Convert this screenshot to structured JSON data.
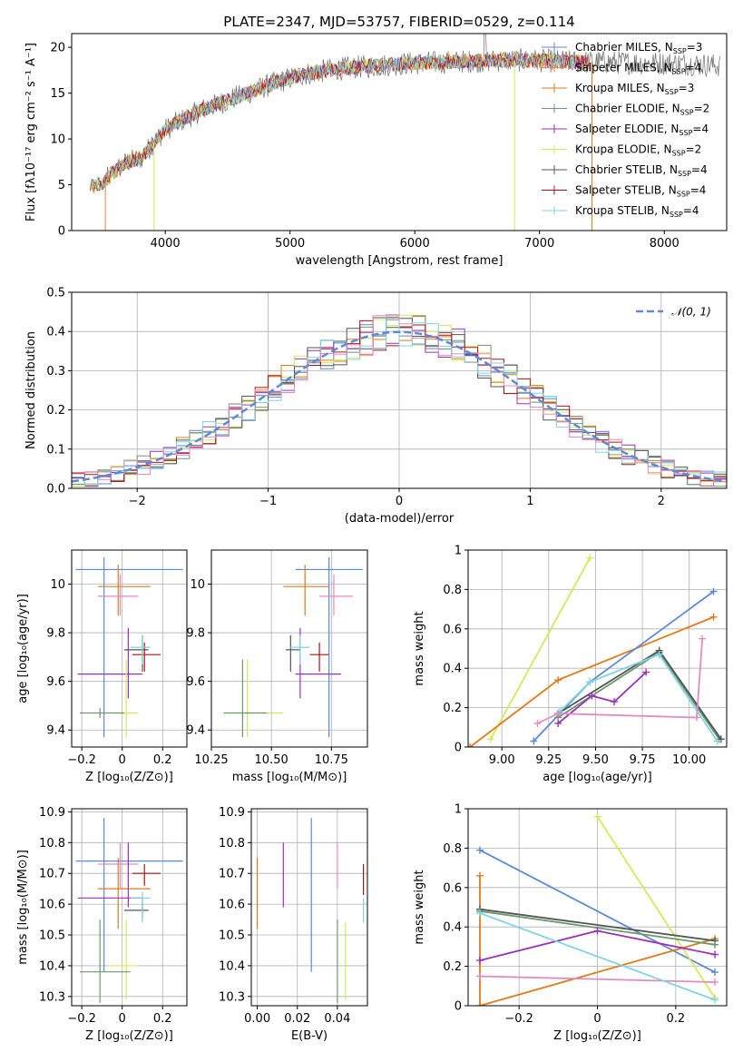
{
  "colors": {
    "Chabrier MILES": "#5b8ad8",
    "Salpeter MILES": "#ff7f3f",
    "Kroupa MILES": "#e07b1a",
    "Chabrier ELODIE": "#6a9a6a",
    "Salpeter ELODIE": "#9b30b8",
    "Kroupa ELODIE": "#d6e85a",
    "Chabrier STELIB": "#555555",
    "Salpeter STELIB": "#b01010",
    "Kroupa STELIB": "#7fd3e8",
    "normal": "#5b8ad8",
    "pink": "#e58ac0"
  },
  "chart_data": [
    {
      "id": "spectrum",
      "type": "line",
      "title": "PLATE=2347, MJD=53757, FIBERID=0529, z=0.114",
      "xlabel": "wavelength [Angstrom, rest frame]",
      "ylabel": "Flux [fλ10⁻¹⁷ erg cm⁻² s⁻¹ A⁻¹]",
      "xlim": [
        3250,
        8500
      ],
      "ylim": [
        0,
        21.5
      ],
      "xticks": [
        4000,
        5000,
        6000,
        7000,
        8000
      ],
      "yticks": [
        0,
        5,
        10,
        15,
        20
      ],
      "grid": false,
      "legend_position": "right",
      "legend": [
        {
          "label": "Chabrier MILES, N",
          "sub": "SSP",
          "value": "=3"
        },
        {
          "label": "Salpeter MILES, N",
          "sub": "SSP",
          "value": "=4"
        },
        {
          "label": "Kroupa MILES, N",
          "sub": "SSP",
          "value": "=3"
        },
        {
          "label": "Chabrier ELODIE, N",
          "sub": "SSP",
          "value": "=2"
        },
        {
          "label": "Salpeter ELODIE, N",
          "sub": "SSP",
          "value": "=4"
        },
        {
          "label": "Kroupa ELODIE, N",
          "sub": "SSP",
          "value": "=2"
        },
        {
          "label": "Chabrier STELIB, N",
          "sub": "SSP",
          "value": "=4"
        },
        {
          "label": "Salpeter STELIB, N",
          "sub": "SSP",
          "value": "=4"
        },
        {
          "label": "Kroupa STELIB, N",
          "sub": "SSP",
          "value": "=4"
        }
      ],
      "legend_keys": [
        "Chabrier MILES",
        "Salpeter MILES",
        "Kroupa MILES",
        "Chabrier ELODIE",
        "Salpeter ELODIE",
        "Kroupa ELODIE",
        "Chabrier STELIB",
        "Salpeter STELIB",
        "Kroupa STELIB"
      ],
      "continuum_x": [
        3400,
        3500,
        3600,
        3700,
        3800,
        3900,
        4000,
        4100,
        4200,
        4300,
        4500,
        4700,
        4900,
        5100,
        5300,
        5500,
        5700,
        5900,
        6100,
        6300,
        6500,
        6700,
        6900,
        7100,
        7300,
        7500,
        7800,
        8200,
        8450
      ],
      "continuum_y": [
        4.8,
        5.2,
        6.5,
        7.5,
        7.8,
        9.5,
        11.0,
        11.8,
        12.5,
        13.2,
        14.2,
        15.2,
        16.2,
        17.0,
        17.5,
        17.8,
        18.0,
        18.2,
        18.3,
        18.4,
        18.5,
        18.6,
        18.6,
        18.5,
        18.4,
        18.4,
        18.3,
        18.2,
        18.0
      ],
      "drops": [
        {
          "x": 3520,
          "color": "Salpeter MILES"
        },
        {
          "x": 3910,
          "color": "Kroupa ELODIE"
        },
        {
          "x": 6800,
          "color": "Kroupa ELODIE"
        },
        {
          "x": 7420,
          "color": "Kroupa MILES"
        }
      ]
    },
    {
      "id": "residuals",
      "type": "line",
      "xlabel": "(data-model)/error",
      "ylabel": "Normed distribution",
      "xlim": [
        -2.5,
        2.5
      ],
      "ylim": [
        0,
        0.5
      ],
      "xticks": [
        -2,
        -1,
        0,
        1,
        2
      ],
      "yticks": [
        0.0,
        0.1,
        0.2,
        0.3,
        0.4,
        0.5
      ],
      "grid": true,
      "legend_position": "top-right",
      "legend": [
        "𝒩(0, 1)"
      ],
      "series_keys": [
        "Chabrier MILES",
        "Kroupa MILES",
        "Chabrier ELODIE",
        "Salpeter ELODIE",
        "Kroupa ELODIE",
        "Chabrier STELIB",
        "Salpeter STELIB",
        "Kroupa STELIB",
        "pink"
      ]
    },
    {
      "id": "age-vs-Z",
      "type": "scatter",
      "xlabel": "Z [log₁₀(Z/Z⊙)]",
      "ylabel": "age  [log₁₀(age/yr)]",
      "xlim": [
        -0.25,
        0.32
      ],
      "ylim": [
        9.33,
        10.14
      ],
      "xticks": [
        -0.2,
        0.0,
        0.2
      ],
      "yticks": [
        9.4,
        9.6,
        9.8,
        10.0
      ],
      "grid": true,
      "points": [
        {
          "c": "Chabrier MILES",
          "x": -0.09,
          "y": 10.06,
          "xe": [
            -0.23,
            0.3
          ],
          "ye": [
            9.37,
            10.11
          ]
        },
        {
          "c": "Kroupa MILES",
          "x": -0.02,
          "y": 9.99,
          "xe": [
            -0.12,
            0.14
          ],
          "ye": [
            9.87,
            10.08
          ]
        },
        {
          "c": "pink",
          "x": -0.01,
          "y": 9.95,
          "xe": [
            -0.12,
            0.08
          ],
          "ye": [
            9.87,
            10.04
          ]
        },
        {
          "c": "Salpeter ELODIE",
          "x": 0.03,
          "y": 9.63,
          "xe": [
            -0.22,
            0.1
          ],
          "ye": [
            9.53,
            9.82
          ]
        },
        {
          "c": "Chabrier STELIB",
          "x": 0.1,
          "y": 9.73,
          "xe": [
            0.01,
            0.13
          ],
          "ye": [
            9.64,
            9.79
          ]
        },
        {
          "c": "Salpeter STELIB",
          "x": 0.11,
          "y": 9.71,
          "xe": [
            0.05,
            0.19
          ],
          "ye": [
            9.64,
            9.76
          ]
        },
        {
          "c": "Kroupa STELIB",
          "x": 0.1,
          "y": 9.74,
          "xe": [
            0.04,
            0.14
          ],
          "ye": [
            9.67,
            9.79
          ]
        },
        {
          "c": "Kroupa ELODIE",
          "x": 0.02,
          "y": 9.47,
          "xe": [
            -0.07,
            0.08
          ],
          "ye": [
            9.37,
            9.69
          ]
        },
        {
          "c": "Chabrier ELODIE",
          "x": -0.11,
          "y": 9.47,
          "xe": [
            -0.21,
            0.01
          ],
          "ye": [
            9.45,
            9.49
          ]
        }
      ]
    },
    {
      "id": "age-vs-mass",
      "type": "scatter",
      "xlabel": "mass [log₁₀(M/M⊙)]",
      "ylabel": "",
      "xlim": [
        10.25,
        10.9
      ],
      "ylim": [
        9.33,
        10.14
      ],
      "xticks": [
        10.25,
        10.5,
        10.75
      ],
      "xtick_labels": [
        "10.25",
        "10.50",
        "10.75"
      ],
      "yticks": [
        9.4,
        9.6,
        9.8,
        10.0
      ],
      "grid": true,
      "points": [
        {
          "c": "Chabrier MILES",
          "x": 10.74,
          "y": 10.06,
          "xe": [
            10.6,
            10.88
          ],
          "ye": [
            9.37,
            10.11
          ]
        },
        {
          "c": "Kroupa MILES",
          "x": 10.64,
          "y": 9.99,
          "xe": [
            10.55,
            10.74
          ],
          "ye": [
            9.87,
            10.08
          ]
        },
        {
          "c": "pink",
          "x": 10.76,
          "y": 9.95,
          "xe": [
            10.7,
            10.84
          ],
          "ye": [
            9.87,
            10.04
          ]
        },
        {
          "c": "Salpeter ELODIE",
          "x": 10.62,
          "y": 9.63,
          "xe": [
            10.6,
            10.79
          ],
          "ye": [
            9.53,
            9.82
          ]
        },
        {
          "c": "Chabrier STELIB",
          "x": 10.58,
          "y": 9.73,
          "xe": [
            10.56,
            10.62
          ],
          "ye": [
            9.64,
            9.79
          ]
        },
        {
          "c": "Salpeter STELIB",
          "x": 10.7,
          "y": 9.71,
          "xe": [
            10.66,
            10.74
          ],
          "ye": [
            9.64,
            9.76
          ]
        },
        {
          "c": "Kroupa STELIB",
          "x": 10.62,
          "y": 9.74,
          "xe": [
            10.58,
            10.66
          ],
          "ye": [
            9.67,
            9.79
          ]
        },
        {
          "c": "Kroupa ELODIE",
          "x": 10.4,
          "y": 9.47,
          "xe": [
            10.31,
            10.55
          ],
          "ye": [
            9.37,
            9.69
          ]
        },
        {
          "c": "Chabrier ELODIE",
          "x": 10.38,
          "y": 9.47,
          "xe": [
            10.3,
            10.48
          ],
          "ye": [
            9.37,
            9.69
          ]
        }
      ]
    },
    {
      "id": "massweight-vs-age",
      "type": "line",
      "xlabel": "age  [log₁₀(age/yr)]",
      "ylabel": "mass weight",
      "xlim": [
        8.82,
        10.2
      ],
      "ylim": [
        0,
        1
      ],
      "xticks": [
        9.0,
        9.25,
        9.5,
        9.75,
        10.0
      ],
      "xtick_labels": [
        "9.00",
        "9.25",
        "9.50",
        "9.75",
        "10.00"
      ],
      "yticks": [
        0.0,
        0.2,
        0.4,
        0.6,
        0.8,
        1.0
      ],
      "grid": true,
      "series": [
        {
          "c": "Kroupa ELODIE",
          "x": [
            8.94,
            9.47
          ],
          "y": [
            0.04,
            0.96
          ]
        },
        {
          "c": "Kroupa MILES",
          "x": [
            8.83,
            9.3,
            10.13
          ],
          "y": [
            0.0,
            0.34,
            0.66
          ]
        },
        {
          "c": "Chabrier MILES",
          "x": [
            9.17,
            9.47,
            10.13
          ],
          "y": [
            0.03,
            0.33,
            0.79
          ]
        },
        {
          "c": "Chabrier ELODIE",
          "x": [
            9.3,
            9.84,
            10.16
          ],
          "y": [
            0.15,
            0.48,
            0.04
          ]
        },
        {
          "c": "Chabrier STELIB",
          "x": [
            9.3,
            9.84,
            10.17
          ],
          "y": [
            0.17,
            0.49,
            0.04
          ]
        },
        {
          "c": "Kroupa STELIB",
          "x": [
            9.31,
            9.47,
            9.84,
            10.15
          ],
          "y": [
            0.18,
            0.33,
            0.47,
            0.03
          ]
        },
        {
          "c": "Salpeter ELODIE",
          "x": [
            9.3,
            9.48,
            9.6,
            9.77
          ],
          "y": [
            0.12,
            0.26,
            0.23,
            0.38
          ]
        },
        {
          "c": "pink",
          "x": [
            9.19,
            9.3,
            10.04,
            10.07
          ],
          "y": [
            0.12,
            0.17,
            0.15,
            0.55
          ]
        }
      ]
    },
    {
      "id": "mass-vs-Z",
      "type": "scatter",
      "xlabel": "Z [log₁₀(Z/Z⊙)]",
      "ylabel": "mass [log₁₀(M/M⊙)]",
      "xlim": [
        -0.25,
        0.32
      ],
      "ylim": [
        10.27,
        10.91
      ],
      "xticks": [
        -0.2,
        0.0,
        0.2
      ],
      "yticks": [
        10.3,
        10.4,
        10.5,
        10.6,
        10.7,
        10.8,
        10.9
      ],
      "grid": true,
      "points": [
        {
          "c": "Chabrier MILES",
          "x": -0.09,
          "y": 10.74,
          "xe": [
            -0.23,
            0.3
          ],
          "ye": [
            10.38,
            10.88
          ]
        },
        {
          "c": "Kroupa MILES",
          "x": -0.02,
          "y": 10.65,
          "xe": [
            -0.12,
            0.14
          ],
          "ye": [
            10.52,
            10.75
          ]
        },
        {
          "c": "pink",
          "x": -0.01,
          "y": 10.73,
          "xe": [
            -0.12,
            0.08
          ],
          "ye": [
            10.65,
            10.8
          ]
        },
        {
          "c": "Salpeter ELODIE",
          "x": 0.03,
          "y": 10.62,
          "xe": [
            -0.22,
            0.1
          ],
          "ye": [
            10.59,
            10.8
          ]
        },
        {
          "c": "Chabrier STELIB",
          "x": 0.1,
          "y": 10.58,
          "xe": [
            0.01,
            0.13
          ],
          "ye": [
            10.55,
            10.62
          ]
        },
        {
          "c": "Salpeter STELIB",
          "x": 0.11,
          "y": 10.7,
          "xe": [
            0.05,
            0.19
          ],
          "ye": [
            10.66,
            10.73
          ]
        },
        {
          "c": "Kroupa STELIB",
          "x": 0.1,
          "y": 10.62,
          "xe": [
            0.04,
            0.14
          ],
          "ye": [
            10.54,
            10.64
          ]
        },
        {
          "c": "Kroupa ELODIE",
          "x": 0.02,
          "y": 10.4,
          "xe": [
            -0.07,
            0.08
          ],
          "ye": [
            10.29,
            10.55
          ]
        },
        {
          "c": "Chabrier ELODIE",
          "x": -0.11,
          "y": 10.38,
          "xe": [
            -0.21,
            0.04
          ],
          "ye": [
            10.28,
            10.55
          ]
        }
      ]
    },
    {
      "id": "mass-vs-EBV",
      "type": "scatter",
      "xlabel": "E(B-V)",
      "ylabel": "",
      "xlim": [
        -0.003,
        0.055
      ],
      "ylim": [
        10.27,
        10.91
      ],
      "xticks": [
        0.0,
        0.02,
        0.04
      ],
      "xtick_labels": [
        "0.00",
        "0.02",
        "0.04"
      ],
      "yticks": [
        10.3,
        10.4,
        10.5,
        10.6,
        10.7,
        10.8,
        10.9
      ],
      "grid": true,
      "points": [
        {
          "c": "Kroupa MILES",
          "x": 0.0,
          "y": 10.65,
          "ye": [
            10.52,
            10.75
          ]
        },
        {
          "c": "Salpeter ELODIE",
          "x": 0.013,
          "y": 10.7,
          "ye": [
            10.59,
            10.8
          ]
        },
        {
          "c": "Chabrier MILES",
          "x": 0.027,
          "y": 10.63,
          "ye": [
            10.38,
            10.88
          ]
        },
        {
          "c": "Chabrier ELODIE",
          "x": 0.04,
          "y": 10.42,
          "ye": [
            10.28,
            10.55
          ]
        },
        {
          "c": "pink",
          "x": 0.04,
          "y": 10.73,
          "ye": [
            10.65,
            10.8
          ]
        },
        {
          "c": "Kroupa ELODIE",
          "x": 0.044,
          "y": 10.41,
          "ye": [
            10.29,
            10.54
          ]
        },
        {
          "c": "Salpeter STELIB",
          "x": 0.053,
          "y": 10.69,
          "ye": [
            10.63,
            10.73
          ]
        },
        {
          "c": "Kroupa STELIB",
          "x": 0.053,
          "y": 10.58,
          "ye": [
            10.54,
            10.62
          ]
        }
      ]
    },
    {
      "id": "massweight-vs-Z",
      "type": "line",
      "xlabel": "Z [log₁₀(Z/Z⊙)]",
      "ylabel": "mass weight",
      "xlim": [
        -0.33,
        0.33
      ],
      "ylim": [
        0,
        1
      ],
      "xticks": [
        -0.2,
        0.0,
        0.2
      ],
      "yticks": [
        0.0,
        0.2,
        0.4,
        0.6,
        0.8,
        1.0
      ],
      "grid": true,
      "series": [
        {
          "c": "Chabrier MILES",
          "x": [
            -0.3,
            0.3
          ],
          "y": [
            0.79,
            0.17
          ]
        },
        {
          "c": "Kroupa ELODIE",
          "x": [
            0.0,
            0.3
          ],
          "y": [
            0.96,
            0.04
          ]
        },
        {
          "c": "Kroupa MILES",
          "x": [
            -0.3,
            -0.3,
            0.3
          ],
          "y": [
            0.66,
            0.0,
            0.34
          ]
        },
        {
          "c": "Chabrier STELIB",
          "x": [
            -0.3,
            0.3
          ],
          "y": [
            0.49,
            0.33
          ]
        },
        {
          "c": "Chabrier ELODIE",
          "x": [
            -0.3,
            0.3
          ],
          "y": [
            0.48,
            0.31
          ]
        },
        {
          "c": "Salpeter ELODIE",
          "x": [
            -0.3,
            0.0,
            0.3
          ],
          "y": [
            0.23,
            0.38,
            0.26
          ]
        },
        {
          "c": "pink",
          "x": [
            -0.3,
            0.3
          ],
          "y": [
            0.15,
            0.12
          ]
        },
        {
          "c": "Kroupa STELIB",
          "x": [
            -0.3,
            0.3
          ],
          "y": [
            0.47,
            0.03
          ]
        }
      ]
    }
  ]
}
